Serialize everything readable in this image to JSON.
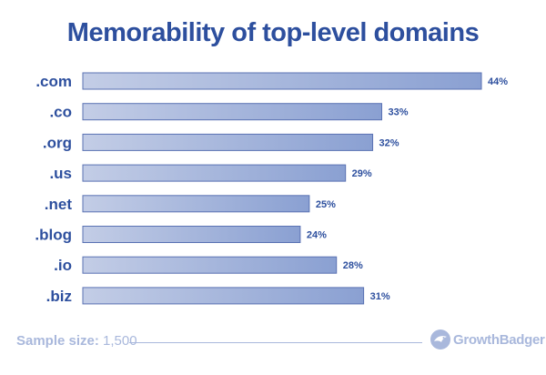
{
  "chart_data": {
    "type": "bar",
    "orientation": "horizontal",
    "title": "Memorability of top-level domains",
    "categories": [
      ".com",
      ".co",
      ".org",
      ".us",
      ".net",
      ".blog",
      ".io",
      ".biz"
    ],
    "values": [
      44,
      33,
      32,
      29,
      25,
      24,
      28,
      31
    ],
    "value_labels": [
      "44%",
      "33%",
      "32%",
      "29%",
      "25%",
      "24%",
      "28%",
      "31%"
    ],
    "unit": "%",
    "xlim": [
      0,
      44
    ],
    "grid": false,
    "legend": "none",
    "colors": {
      "bar_start": "#c3cde6",
      "bar_end": "#8aa0d2",
      "bar_border": "#5a72b3",
      "text": "#2d4f9e"
    }
  },
  "footer": {
    "sample_label": "Sample size:",
    "sample_value": "1,500",
    "brand": "GrowthBadger",
    "brand_icon": "badger-logo-icon"
  }
}
